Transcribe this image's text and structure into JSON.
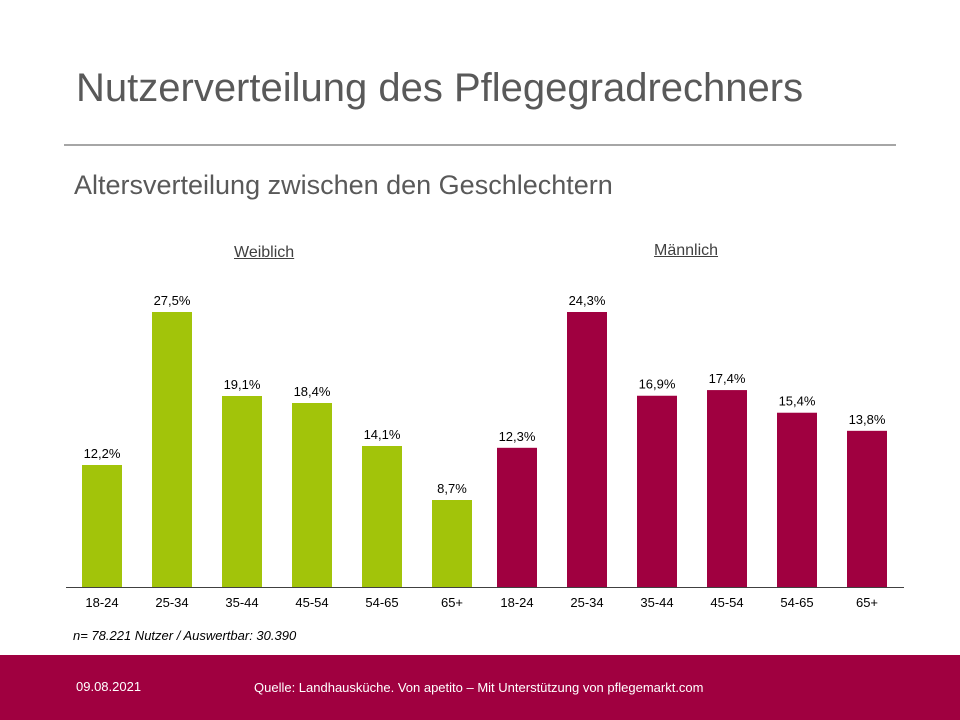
{
  "slide": {
    "title": "Nutzerverteilung des Pflegegradrechners",
    "subtitle": "Altersverteilung zwischen den Geschlechtern",
    "note": "n= 78.221 Nutzer / Auswertbar: 30.390"
  },
  "footer": {
    "date": "09.08.2021",
    "source": "Quelle: Landhausküche. Von apetito – Mit Unterstützung von pflegemarkt.com"
  },
  "chart_data": {
    "type": "bar",
    "title": "Altersverteilung zwischen den Geschlechtern",
    "categories": [
      "18-24",
      "25-34",
      "35-44",
      "45-54",
      "54-65",
      "65+"
    ],
    "series": [
      {
        "name": "Weiblich",
        "color": "#a2c40a",
        "values": [
          12.2,
          27.5,
          19.1,
          18.4,
          14.1,
          8.7
        ],
        "labels": [
          "12,2%",
          "27,5%",
          "19,1%",
          "18,4%",
          "14,1%",
          "8,7%"
        ]
      },
      {
        "name": "Männlich",
        "color": "#a00040",
        "values": [
          12.3,
          24.3,
          16.9,
          17.4,
          15.4,
          13.8
        ],
        "labels": [
          "12,3%",
          "24,3%",
          "16,9%",
          "17,4%",
          "15,4%",
          "13,8%"
        ]
      }
    ],
    "unit": "%"
  }
}
